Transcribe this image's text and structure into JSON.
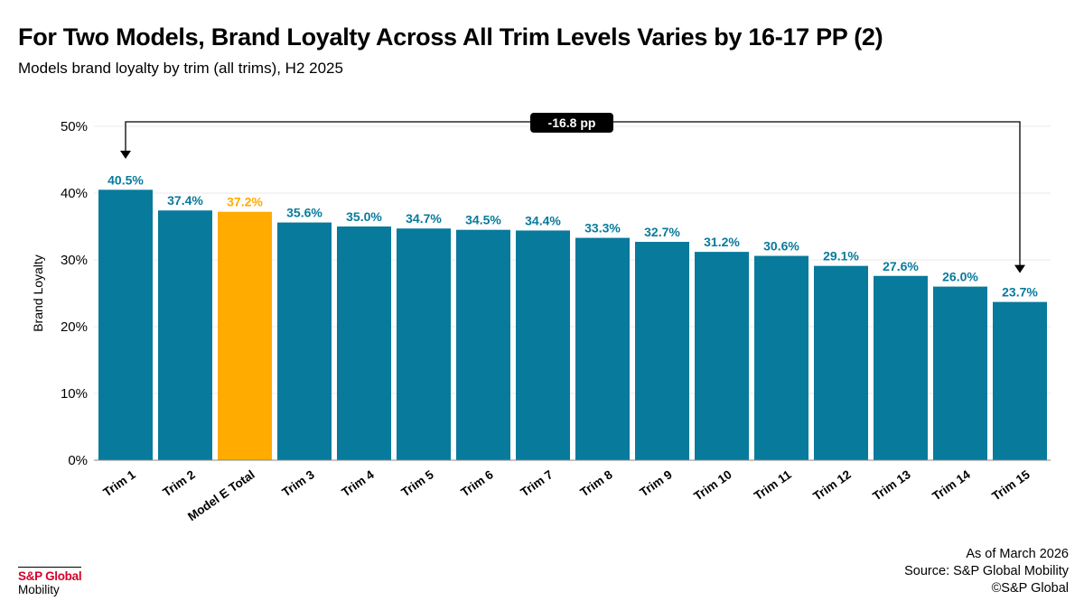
{
  "title": "For Two Models, Brand Loyalty Across All Trim Levels Varies by 16-17 PP (2)",
  "subtitle": "Models brand loyalty by trim (all trims), H2 2025",
  "chart_data": {
    "type": "bar",
    "title": "For Two Models, Brand Loyalty Across All Trim Levels Varies by 16-17 PP (2)",
    "xlabel": "",
    "ylabel": "Brand Loyalty",
    "ylim": [
      0,
      50
    ],
    "yticks": [
      0,
      10,
      20,
      30,
      40,
      50
    ],
    "ytick_labels": [
      "0%",
      "10%",
      "20%",
      "30%",
      "40%",
      "50%"
    ],
    "grid": true,
    "categories": [
      "Trim 1",
      "Trim 2",
      "Model E Total",
      "Trim 3",
      "Trim 4",
      "Trim 5",
      "Trim 6",
      "Trim 7",
      "Trim 8",
      "Trim 9",
      "Trim 10",
      "Trim 11",
      "Trim 12",
      "Trim 13",
      "Trim 14",
      "Trim 15"
    ],
    "values": [
      40.5,
      37.4,
      37.2,
      35.6,
      35.0,
      34.7,
      34.5,
      34.4,
      33.3,
      32.7,
      31.2,
      30.6,
      29.1,
      27.6,
      26.0,
      23.7
    ],
    "data_labels": [
      "40.5%",
      "37.4%",
      "37.2%",
      "35.6%",
      "35.0%",
      "34.7%",
      "34.5%",
      "34.4%",
      "33.3%",
      "32.7%",
      "31.2%",
      "30.6%",
      "29.1%",
      "27.6%",
      "26.0%",
      "23.7%"
    ],
    "highlight_index": 2,
    "annotation": {
      "label": "-16.8 pp",
      "from": "Trim 1",
      "to": "Trim 15"
    }
  },
  "colors": {
    "bar": "#087a9c",
    "highlight": "#ffab00",
    "label": "#087a9c",
    "highlight_label": "#ffab00"
  },
  "footer": {
    "as_of": "As of March 2026",
    "source": "Source: S&P Global Mobility",
    "copyright": "©S&P Global"
  },
  "logo": {
    "brand": "S&P Global",
    "sub": "Mobility"
  }
}
